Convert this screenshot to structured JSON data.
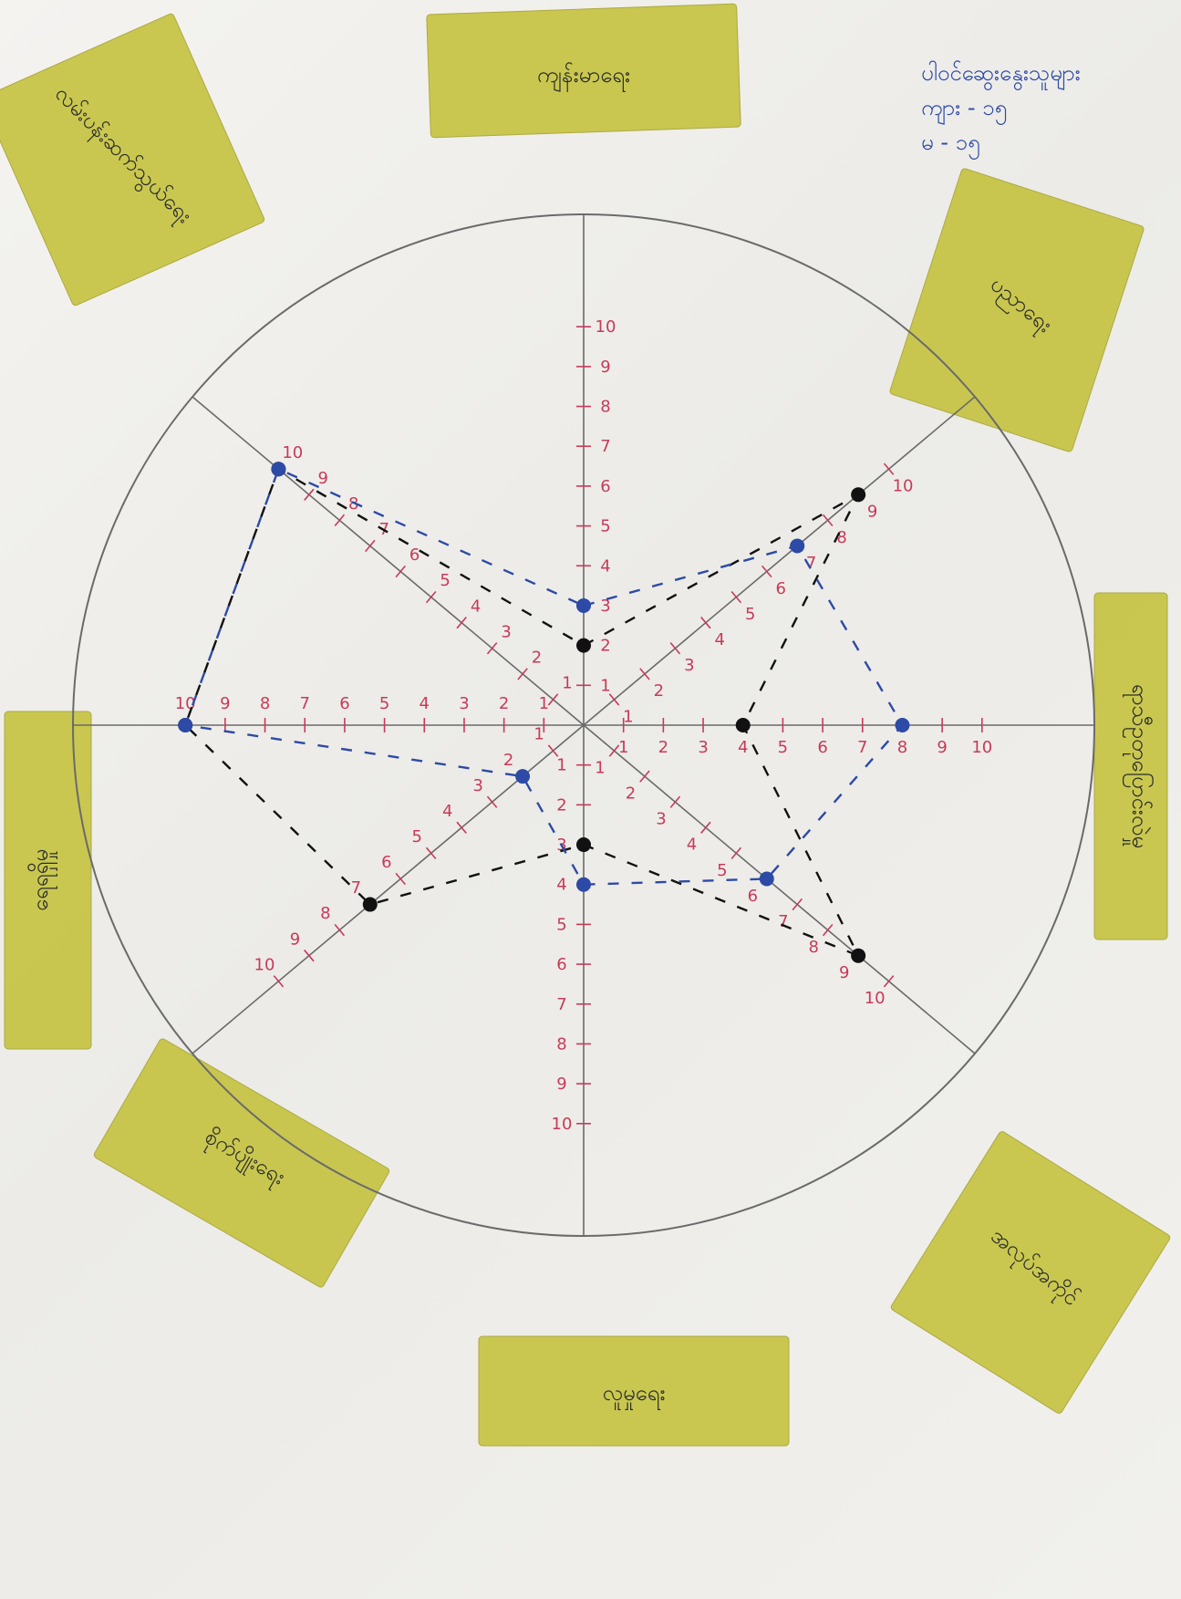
{
  "colors": {
    "paper": "#f1f0ec",
    "pencil": "#6a6a6a",
    "red": "#c83a5a",
    "blue": "#2d4aa6",
    "black": "#111111",
    "sticky": "#c8c548"
  },
  "legend_note": {
    "line1": "ပါဝင်ဆွေးနွေးသူများ",
    "line2": "ကျား - ၁၅",
    "line3": "မ - ၁၅"
  },
  "chart_data": {
    "type": "radar",
    "title": "",
    "scale_max": 10,
    "categories": [
      "ကျန်းမာရေး",
      "ပညာရေး",
      "ရာသီဥတုပြောင်းလဲမှု",
      "အလုပ်အကိုင်",
      "လူမှုရေး",
      "စိုက်ပျိုးရေး",
      "ရေရရှိမှု",
      "လမ်းပန်းဆက်သွယ်ရေး"
    ],
    "axis_labels_drawn": [
      "1",
      "2",
      "3",
      "4",
      "5",
      "6",
      "7",
      "8",
      "9",
      "10"
    ],
    "series": [
      {
        "name": "",
        "color": "#111111",
        "values": [
          2,
          9,
          4,
          9,
          3,
          7,
          10,
          10
        ]
      },
      {
        "name": "",
        "color": "#2d4aa6",
        "values": [
          3,
          7,
          8,
          6,
          4,
          2,
          10,
          10
        ]
      }
    ]
  }
}
